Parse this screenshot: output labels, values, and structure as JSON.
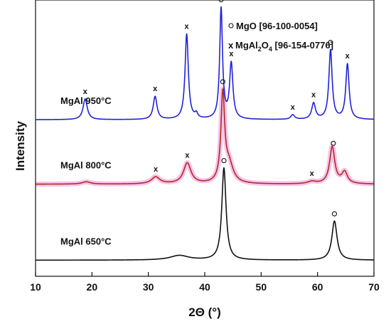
{
  "chart_data": {
    "type": "line",
    "title": "",
    "xlabel": "2Θ (°)",
    "ylabel": "Intensity",
    "xlim": [
      10,
      70
    ],
    "xticks": [
      "10",
      "20",
      "30",
      "40",
      "50",
      "60",
      "70"
    ],
    "grid": false,
    "legend": {
      "position": "top-right",
      "entries": [
        {
          "symbol": "o",
          "label": "MgO [96-100-0054]"
        },
        {
          "symbol": "x",
          "label": "MgAl2O4 [96-154-0776]"
        }
      ]
    },
    "colors": {
      "MgAl 950°C": "#1f22d6",
      "MgAl 800°C": "#b22a22",
      "MgAl 650°C": "#111111",
      "highlight": "#f6b8e6"
    },
    "series": [
      {
        "name": "MgAl 950°C",
        "baseline": 0.28,
        "peaks": [
          [
            18.8,
            0.09,
            0.45
          ],
          [
            31.2,
            0.1,
            0.4
          ],
          [
            36.8,
            0.37,
            0.35
          ],
          [
            38.5,
            0.02,
            0.3
          ],
          [
            42.9,
            0.48,
            0.3
          ],
          [
            44.7,
            0.24,
            0.35
          ],
          [
            55.6,
            0.02,
            0.4
          ],
          [
            59.3,
            0.07,
            0.4
          ],
          [
            62.3,
            0.3,
            0.35
          ],
          [
            65.3,
            0.24,
            0.35
          ]
        ],
        "markers": [
          {
            "x": 18.8,
            "symbol": "x"
          },
          {
            "x": 31.2,
            "symbol": "x"
          },
          {
            "x": 36.8,
            "symbol": "x"
          },
          {
            "x": 42.9,
            "symbol": "o"
          },
          {
            "x": 44.7,
            "symbol": "x"
          },
          {
            "x": 55.6,
            "symbol": "x"
          },
          {
            "x": 59.3,
            "symbol": "x"
          },
          {
            "x": 62.3,
            "symbol": "o"
          },
          {
            "x": 65.3,
            "symbol": "x"
          }
        ]
      },
      {
        "name": "MgAl 800°C",
        "baseline": 0.0,
        "peaks": [
          [
            19.0,
            0.01,
            0.9
          ],
          [
            31.3,
            0.03,
            0.9
          ],
          [
            36.9,
            0.09,
            0.8
          ],
          [
            43.2,
            0.38,
            0.4
          ],
          [
            44.3,
            0.08,
            0.9
          ],
          [
            59.0,
            0.01,
            0.9
          ],
          [
            62.6,
            0.16,
            0.55
          ],
          [
            64.8,
            0.05,
            0.6
          ]
        ],
        "markers": [
          {
            "x": 31.3,
            "symbol": "x"
          },
          {
            "x": 36.9,
            "symbol": "x"
          },
          {
            "x": 43.2,
            "symbol": "o"
          },
          {
            "x": 59.0,
            "symbol": "x"
          },
          {
            "x": 62.8,
            "symbol": "o"
          }
        ]
      },
      {
        "name": "MgAl 650°C",
        "baseline": -0.33,
        "peaks": [
          [
            35.5,
            0.02,
            2.0
          ],
          [
            43.4,
            0.4,
            0.45
          ],
          [
            63.0,
            0.17,
            0.55
          ]
        ],
        "markers": [
          {
            "x": 43.4,
            "symbol": "o"
          },
          {
            "x": 63.0,
            "symbol": "o"
          }
        ]
      }
    ]
  }
}
